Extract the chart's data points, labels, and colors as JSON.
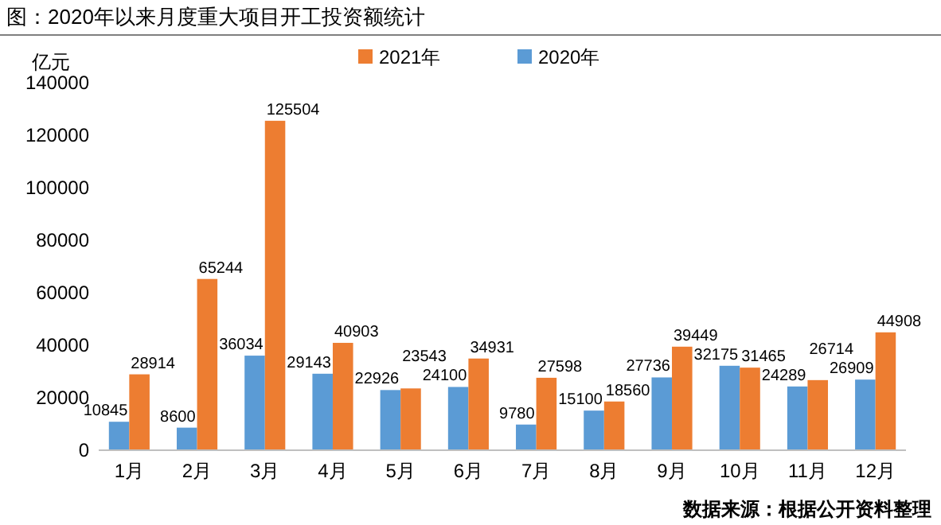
{
  "chart_data": {
    "type": "bar",
    "title": "图：2020年以来月度重大项目开工投资额统计",
    "ylabel": "亿元",
    "annotations": [
      "数据来源：根据公开资料整理"
    ],
    "categories": [
      "1月",
      "2月",
      "3月",
      "4月",
      "5月",
      "6月",
      "7月",
      "8月",
      "9月",
      "10月",
      "11月",
      "12月"
    ],
    "series": [
      {
        "name": "2020年",
        "color": "#5b9bd5",
        "values": [
          10845,
          8600,
          36034,
          29143,
          22926,
          24100,
          9780,
          15100,
          27736,
          32175,
          24289,
          26909
        ]
      },
      {
        "name": "2021年",
        "color": "#ed7d31",
        "values": [
          28914,
          65244,
          125504,
          40903,
          23543,
          34931,
          27598,
          18560,
          39449,
          31465,
          26714,
          44908
        ]
      }
    ],
    "ylim": [
      0,
      140000
    ],
    "yticks": [
      0,
      20000,
      40000,
      60000,
      80000,
      100000,
      120000,
      140000
    ],
    "grid": false,
    "legend": "top",
    "data_labels": true
  }
}
